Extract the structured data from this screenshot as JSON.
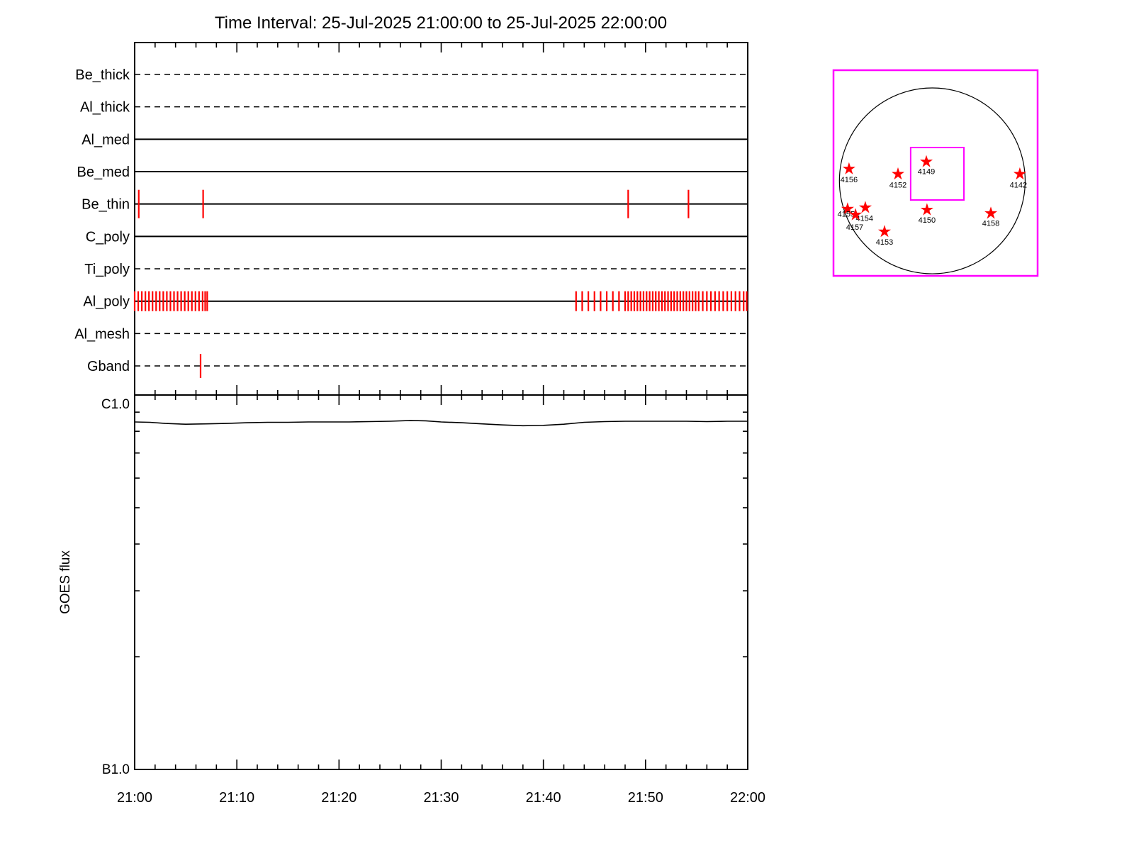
{
  "title": "Time Interval: 25-Jul-2025 21:00:00 to 25-Jul-2025 22:00:00",
  "colors": {
    "exposure_red": "#ff0000",
    "box_magenta": "#ff00ff",
    "line_black": "#000000",
    "background": "#ffffff"
  },
  "chart_data": [
    {
      "type": "timeline",
      "name": "xrt-filter-exposure-timeline",
      "x_unit": "minutes after 21:00",
      "x_range": [
        0,
        60
      ],
      "x_tick_labels": [
        "21:00",
        "21:10",
        "21:20",
        "21:30",
        "21:40",
        "21:50",
        "22:00"
      ],
      "x_minor_tick_minutes": 2,
      "x_major_tick_minutes": 10,
      "filters": [
        {
          "label": "Be_thick",
          "line_style": "dashed",
          "exposures_min": []
        },
        {
          "label": "Al_thick",
          "line_style": "dashed",
          "exposures_min": []
        },
        {
          "label": "Al_med",
          "line_style": "solid",
          "exposures_min": []
        },
        {
          "label": "Be_med",
          "line_style": "solid",
          "exposures_min": []
        },
        {
          "label": "Be_thin",
          "line_style": "solid",
          "exposures_min": [
            0.4,
            6.7,
            48.3,
            54.2
          ]
        },
        {
          "label": "C_poly",
          "line_style": "solid",
          "exposures_min": []
        },
        {
          "label": "Ti_poly",
          "line_style": "dashed",
          "exposures_min": []
        },
        {
          "label": "Al_poly",
          "line_style": "solid",
          "exposures_min": [
            0.0,
            0.35,
            0.7,
            1.05,
            1.4,
            1.75,
            2.1,
            2.45,
            2.8,
            3.15,
            3.5,
            3.85,
            4.2,
            4.55,
            4.9,
            5.25,
            5.6,
            5.95,
            6.3,
            6.65,
            6.9,
            7.1,
            43.2,
            43.8,
            44.4,
            45.0,
            45.6,
            46.2,
            46.8,
            47.4,
            48.0,
            48.3,
            48.6,
            48.9,
            49.2,
            49.5,
            49.8,
            50.1,
            50.4,
            50.7,
            51.0,
            51.3,
            51.6,
            51.9,
            52.2,
            52.5,
            52.8,
            53.1,
            53.4,
            53.7,
            54.0,
            54.3,
            54.6,
            54.9,
            55.2,
            55.6,
            56.0,
            56.4,
            56.8,
            57.2,
            57.6,
            58.0,
            58.4,
            58.8,
            59.2,
            59.6,
            59.9
          ]
        },
        {
          "label": "Al_mesh",
          "line_style": "dashed",
          "exposures_min": []
        },
        {
          "label": "Gband",
          "line_style": "dashed",
          "exposures_min": [
            6.45
          ]
        }
      ]
    },
    {
      "type": "line",
      "name": "goes-flux",
      "ylabel": "GOES flux",
      "y_top_label": "C1.0",
      "y_bottom_label": "B1.0",
      "y_scale": "log, one decade from B1.0 (bottom, frac 0) to C1.0 (top, frac 1)",
      "points": [
        [
          0,
          0.928
        ],
        [
          1.5,
          0.927
        ],
        [
          3,
          0.924
        ],
        [
          5,
          0.922
        ],
        [
          7,
          0.923
        ],
        [
          9,
          0.924
        ],
        [
          11,
          0.926
        ],
        [
          13,
          0.927
        ],
        [
          15,
          0.927
        ],
        [
          17,
          0.928
        ],
        [
          19,
          0.928
        ],
        [
          21,
          0.928
        ],
        [
          23,
          0.929
        ],
        [
          25,
          0.93
        ],
        [
          27,
          0.932
        ],
        [
          28.5,
          0.931
        ],
        [
          30,
          0.928
        ],
        [
          32,
          0.926
        ],
        [
          34,
          0.923
        ],
        [
          36,
          0.92
        ],
        [
          38,
          0.918
        ],
        [
          40,
          0.919
        ],
        [
          42,
          0.922
        ],
        [
          44,
          0.927
        ],
        [
          46,
          0.929
        ],
        [
          48,
          0.93
        ],
        [
          50,
          0.93
        ],
        [
          52,
          0.93
        ],
        [
          54,
          0.93
        ],
        [
          56,
          0.929
        ],
        [
          58,
          0.93
        ],
        [
          60,
          0.93
        ]
      ]
    },
    {
      "type": "scatter",
      "name": "solar-disk-active-regions",
      "disk": {
        "cx": 0.484,
        "cy": 0.538,
        "r": 0.455
      },
      "fov": {
        "x": 0.378,
        "y": 0.376,
        "w": 0.261,
        "h": 0.255
      },
      "regions": [
        {
          "id": "4156",
          "x": 0.076,
          "y": 0.48,
          "lx": 0.076,
          "ly": 0.545
        },
        {
          "id": "4152",
          "x": 0.316,
          "y": 0.505,
          "lx": 0.316,
          "ly": 0.57
        },
        {
          "id": "4149",
          "x": 0.455,
          "y": 0.445,
          "lx": 0.455,
          "ly": 0.505
        },
        {
          "id": "4142",
          "x": 0.913,
          "y": 0.505,
          "lx": 0.906,
          "ly": 0.57
        },
        {
          "id": "4155",
          "x": 0.069,
          "y": 0.675,
          "lx": 0.062,
          "ly": 0.712
        },
        {
          "id": "4154",
          "x": 0.156,
          "y": 0.668,
          "lx": 0.152,
          "ly": 0.732
        },
        {
          "id": "4157",
          "x": 0.108,
          "y": 0.703,
          "lx": 0.104,
          "ly": 0.775
        },
        {
          "id": "4150",
          "x": 0.458,
          "y": 0.679,
          "lx": 0.458,
          "ly": 0.742
        },
        {
          "id": "4158",
          "x": 0.771,
          "y": 0.696,
          "lx": 0.771,
          "ly": 0.757
        },
        {
          "id": "4153",
          "x": 0.25,
          "y": 0.785,
          "lx": 0.25,
          "ly": 0.848
        }
      ]
    }
  ]
}
